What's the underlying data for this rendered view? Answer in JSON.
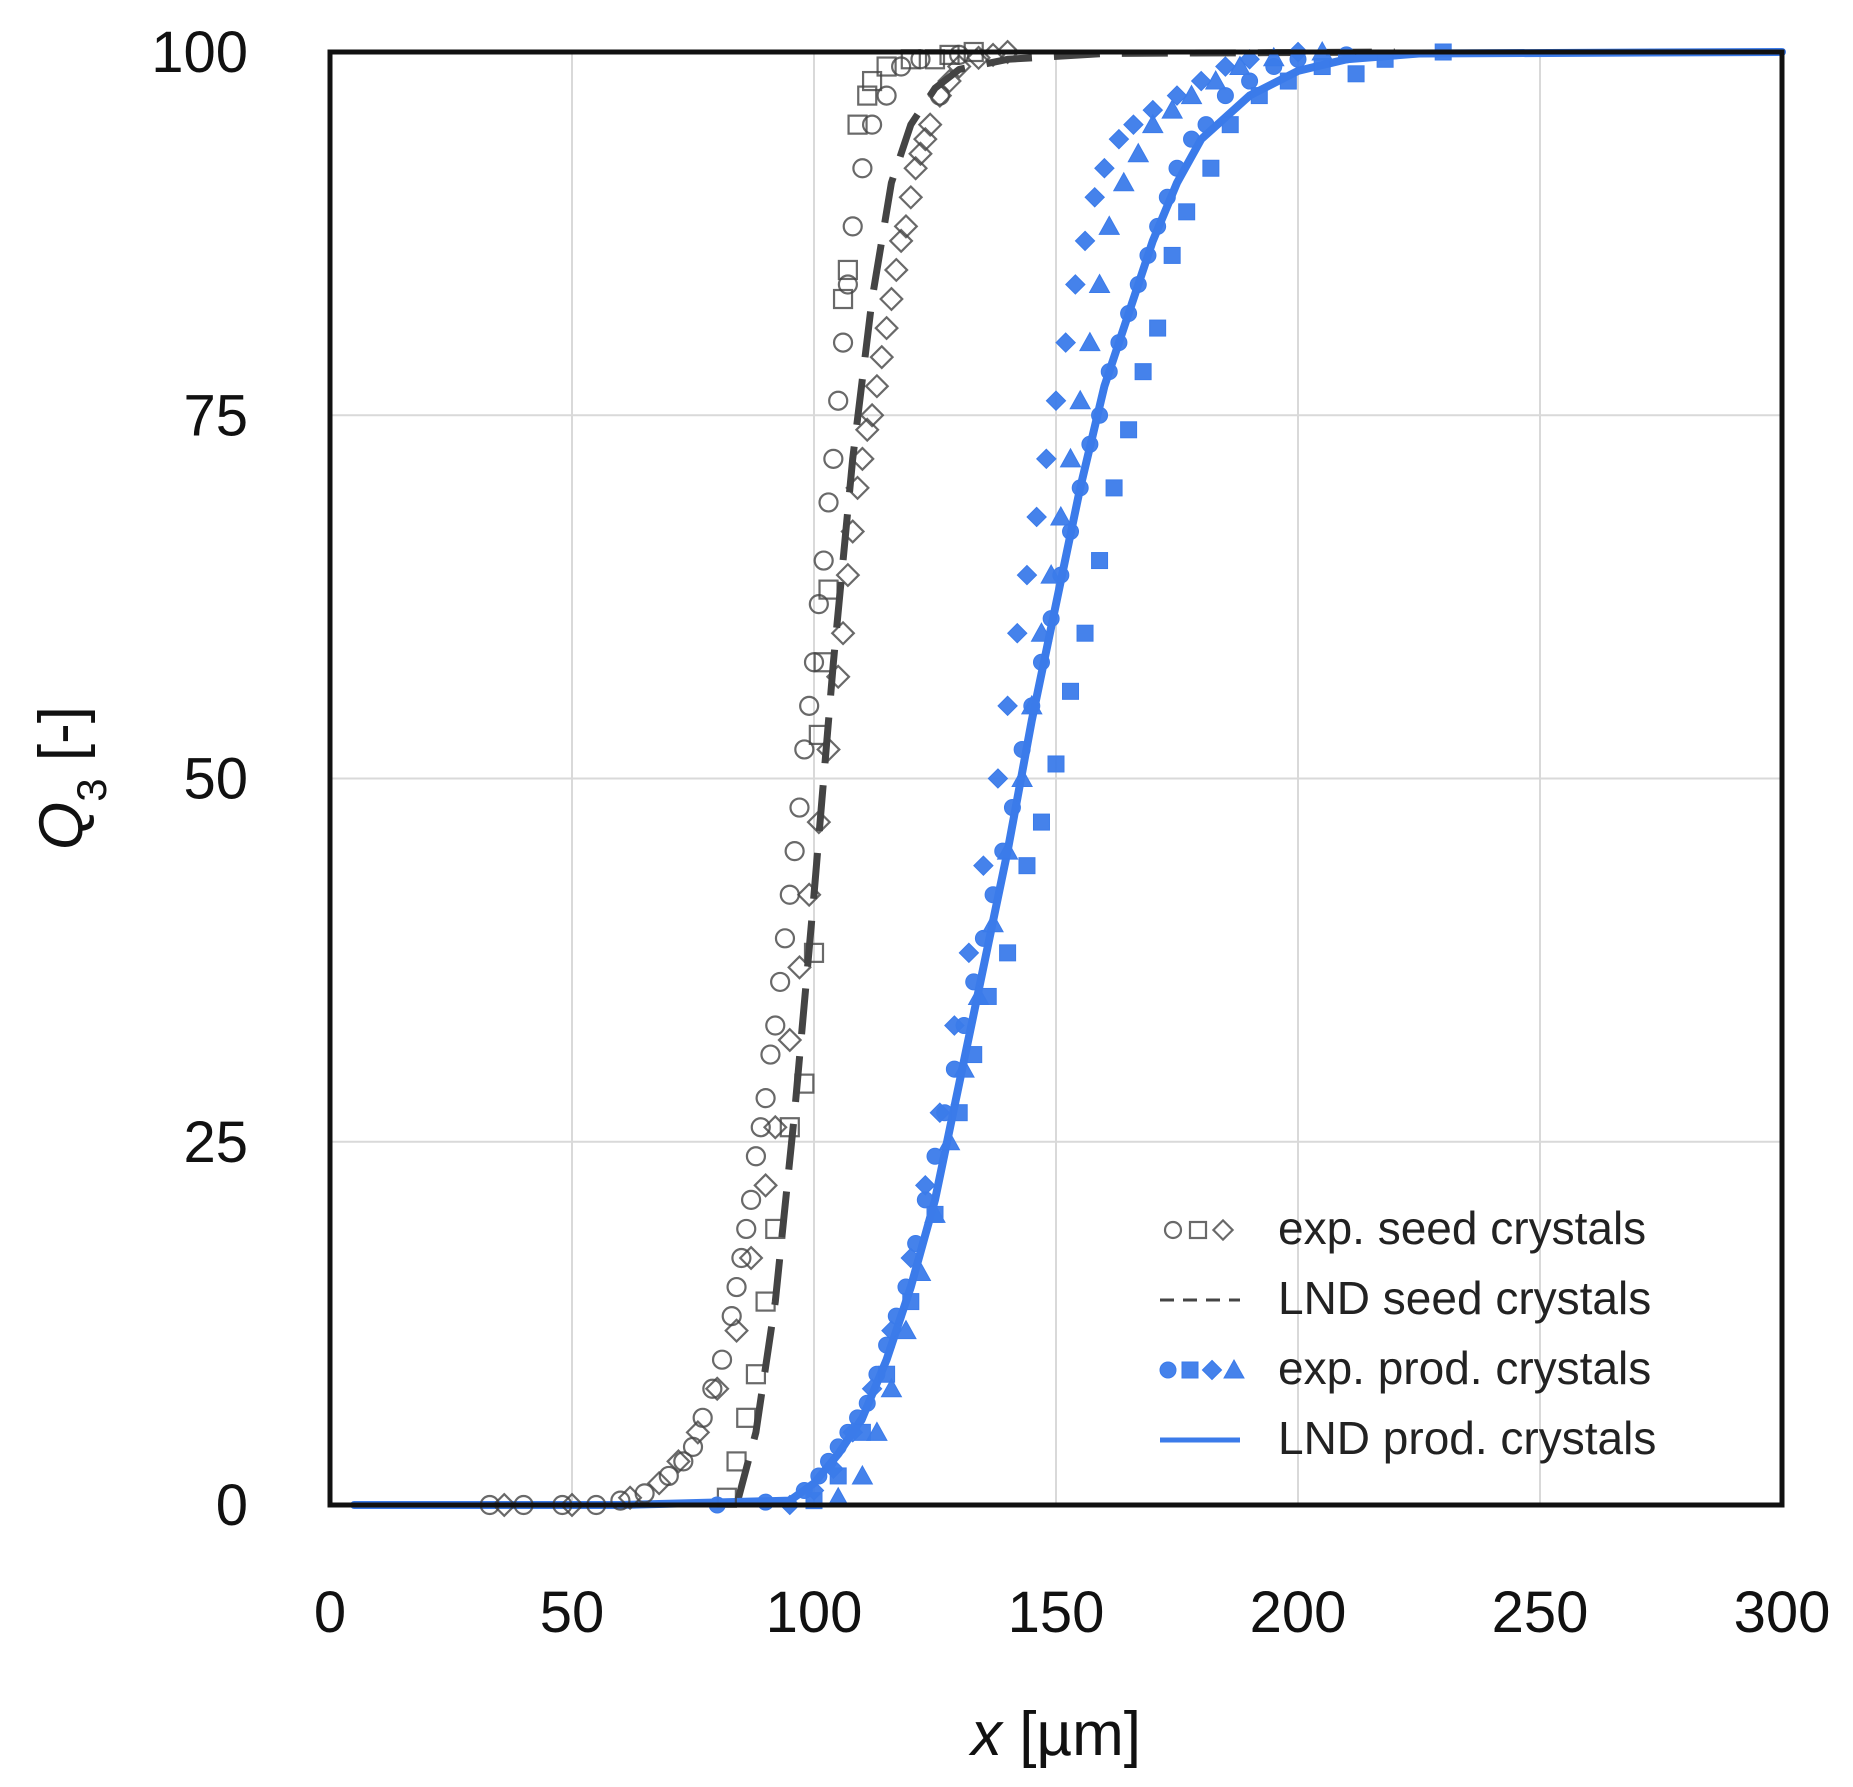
{
  "chart_data": {
    "type": "scatter",
    "title": "",
    "xlabel": {
      "var": "x",
      "unit": " [µm]"
    },
    "ylabel": {
      "var": "Q",
      "sub": "3",
      "unit": " [-]"
    },
    "xlim": [
      0,
      300
    ],
    "ylim": [
      0,
      100
    ],
    "xticks": [
      0,
      50,
      100,
      150,
      200,
      250,
      300
    ],
    "yticks": [
      0,
      25,
      50,
      75,
      100
    ],
    "grid": true,
    "legend_position": "bottom-right",
    "colors": {
      "seed": "#444444",
      "prod": "#3b7bea",
      "grid": "#d9d9d9"
    },
    "legend": [
      {
        "label": "exp. seed crystals",
        "kind": "markers",
        "markers": [
          "circle",
          "square",
          "diamond"
        ],
        "filled": false,
        "color": "#444444"
      },
      {
        "label": "LND seed crystals",
        "kind": "dashed-line",
        "color": "#444444"
      },
      {
        "label": "exp. prod. crystals",
        "kind": "markers",
        "markers": [
          "circle",
          "square",
          "diamond",
          "triangle"
        ],
        "filled": true,
        "color": "#3b7bea"
      },
      {
        "label": "LND prod. crystals",
        "kind": "solid-line",
        "color": "#3b7bea"
      }
    ],
    "series": [
      {
        "name": "LND seed crystals",
        "kind": "line",
        "style": "dashed",
        "color": "#444444",
        "points": [
          [
            84,
            0
          ],
          [
            88,
            5
          ],
          [
            92,
            14
          ],
          [
            96,
            27
          ],
          [
            100,
            42
          ],
          [
            104,
            58
          ],
          [
            108,
            72
          ],
          [
            112,
            83
          ],
          [
            116,
            91
          ],
          [
            120,
            95
          ],
          [
            125,
            97.5
          ],
          [
            130,
            98.8
          ],
          [
            140,
            99.5
          ],
          [
            160,
            99.9
          ],
          [
            220,
            100
          ]
        ]
      },
      {
        "name": "LND prod. crystals",
        "kind": "line",
        "style": "solid",
        "color": "#3b7bea",
        "points": [
          [
            5,
            0
          ],
          [
            60,
            0
          ],
          [
            95,
            0.3
          ],
          [
            100,
            1.5
          ],
          [
            105,
            3.5
          ],
          [
            110,
            6
          ],
          [
            115,
            10
          ],
          [
            120,
            15
          ],
          [
            125,
            21
          ],
          [
            130,
            29
          ],
          [
            135,
            37
          ],
          [
            140,
            45
          ],
          [
            145,
            54
          ],
          [
            150,
            62
          ],
          [
            155,
            70
          ],
          [
            160,
            77
          ],
          [
            165,
            82
          ],
          [
            170,
            87
          ],
          [
            175,
            91
          ],
          [
            180,
            94
          ],
          [
            190,
            97
          ],
          [
            200,
            98.7
          ],
          [
            210,
            99.5
          ],
          [
            225,
            99.9
          ],
          [
            300,
            100
          ]
        ]
      },
      {
        "name": "exp. seed crystals",
        "kind": "markers",
        "marker": "circle",
        "filled": false,
        "color": "#444444",
        "points": [
          [
            33,
            0
          ],
          [
            40,
            0
          ],
          [
            48,
            0
          ],
          [
            55,
            0
          ],
          [
            60,
            0.3
          ],
          [
            65,
            0.8
          ],
          [
            70,
            2
          ],
          [
            73,
            3
          ],
          [
            75,
            4
          ],
          [
            77,
            6
          ],
          [
            79,
            8
          ],
          [
            81,
            10
          ],
          [
            83,
            13
          ],
          [
            84,
            15
          ],
          [
            85,
            17
          ],
          [
            86,
            19
          ],
          [
            87,
            21
          ],
          [
            88,
            24
          ],
          [
            89,
            26
          ],
          [
            90,
            28
          ],
          [
            91,
            31
          ],
          [
            92,
            33
          ],
          [
            93,
            36
          ],
          [
            94,
            39
          ],
          [
            95,
            42
          ],
          [
            96,
            45
          ],
          [
            97,
            48
          ],
          [
            98,
            52
          ],
          [
            99,
            55
          ],
          [
            100,
            58
          ],
          [
            101,
            62
          ],
          [
            102,
            65
          ],
          [
            103,
            69
          ],
          [
            104,
            72
          ],
          [
            105,
            76
          ],
          [
            106,
            80
          ],
          [
            107,
            84
          ],
          [
            108,
            88
          ],
          [
            110,
            92
          ],
          [
            112,
            95
          ],
          [
            115,
            97
          ],
          [
            118,
            99
          ],
          [
            122,
            99.5
          ],
          [
            126,
            97
          ],
          [
            130,
            99.8
          ]
        ]
      },
      {
        "name": "exp. seed crystals",
        "kind": "markers",
        "marker": "square",
        "filled": false,
        "color": "#444444",
        "points": [
          [
            82,
            0.5
          ],
          [
            84,
            3
          ],
          [
            86,
            6
          ],
          [
            88,
            9
          ],
          [
            90,
            14
          ],
          [
            92,
            19
          ],
          [
            95,
            26
          ],
          [
            98,
            29
          ],
          [
            100,
            38
          ],
          [
            101,
            53
          ],
          [
            102,
            58
          ],
          [
            103,
            63
          ],
          [
            106,
            83
          ],
          [
            107,
            85
          ],
          [
            109,
            95
          ],
          [
            111,
            97
          ],
          [
            112,
            98
          ],
          [
            115,
            99
          ],
          [
            120,
            99.5
          ],
          [
            125,
            99.5
          ],
          [
            128,
            99.8
          ],
          [
            133,
            100
          ]
        ]
      },
      {
        "name": "exp. seed crystals",
        "kind": "markers",
        "marker": "diamond",
        "filled": false,
        "color": "#444444",
        "points": [
          [
            36,
            0
          ],
          [
            50,
            0
          ],
          [
            62,
            0.5
          ],
          [
            68,
            1.5
          ],
          [
            72,
            3
          ],
          [
            76,
            5
          ],
          [
            80,
            8
          ],
          [
            84,
            12
          ],
          [
            87,
            17
          ],
          [
            90,
            22
          ],
          [
            92,
            26
          ],
          [
            95,
            32
          ],
          [
            97,
            37
          ],
          [
            99,
            42
          ],
          [
            101,
            47
          ],
          [
            103,
            52
          ],
          [
            105,
            57
          ],
          [
            106,
            60
          ],
          [
            107,
            64
          ],
          [
            108,
            67
          ],
          [
            109,
            70
          ],
          [
            110,
            72
          ],
          [
            111,
            74
          ],
          [
            112,
            75
          ],
          [
            113,
            77
          ],
          [
            114,
            79
          ],
          [
            115,
            81
          ],
          [
            116,
            83
          ],
          [
            117,
            85
          ],
          [
            118,
            87
          ],
          [
            119,
            88
          ],
          [
            120,
            90
          ],
          [
            121,
            92
          ],
          [
            122,
            93
          ],
          [
            123,
            94
          ],
          [
            124,
            95
          ],
          [
            126,
            97
          ],
          [
            128,
            98
          ],
          [
            130,
            99
          ],
          [
            134,
            99.6
          ],
          [
            137,
            99.8
          ],
          [
            140,
            100
          ]
        ]
      },
      {
        "name": "exp. prod. crystals",
        "kind": "markers",
        "marker": "circle",
        "filled": true,
        "color": "#3b7bea",
        "points": [
          [
            80,
            0
          ],
          [
            90,
            0.2
          ],
          [
            98,
            1
          ],
          [
            101,
            2
          ],
          [
            103,
            3
          ],
          [
            105,
            4
          ],
          [
            107,
            5
          ],
          [
            109,
            6
          ],
          [
            111,
            7
          ],
          [
            113,
            9
          ],
          [
            115,
            11
          ],
          [
            117,
            13
          ],
          [
            119,
            15
          ],
          [
            121,
            18
          ],
          [
            123,
            21
          ],
          [
            125,
            24
          ],
          [
            127,
            27
          ],
          [
            129,
            30
          ],
          [
            131,
            33
          ],
          [
            133,
            36
          ],
          [
            135,
            39
          ],
          [
            137,
            42
          ],
          [
            139,
            45
          ],
          [
            141,
            48
          ],
          [
            143,
            52
          ],
          [
            145,
            55
          ],
          [
            147,
            58
          ],
          [
            149,
            61
          ],
          [
            151,
            64
          ],
          [
            153,
            67
          ],
          [
            155,
            70
          ],
          [
            157,
            73
          ],
          [
            159,
            75
          ],
          [
            161,
            78
          ],
          [
            163,
            80
          ],
          [
            165,
            82
          ],
          [
            167,
            84
          ],
          [
            169,
            86
          ],
          [
            171,
            88
          ],
          [
            173,
            90
          ],
          [
            175,
            92
          ],
          [
            178,
            94
          ],
          [
            181,
            95
          ],
          [
            185,
            97
          ],
          [
            190,
            98
          ],
          [
            195,
            99
          ],
          [
            200,
            99.5
          ],
          [
            210,
            99.8
          ]
        ]
      },
      {
        "name": "exp. prod. crystals",
        "kind": "markers",
        "marker": "square",
        "filled": true,
        "color": "#3b7bea",
        "points": [
          [
            100,
            0.3
          ],
          [
            105,
            2
          ],
          [
            110,
            5
          ],
          [
            115,
            9
          ],
          [
            120,
            14
          ],
          [
            125,
            20
          ],
          [
            130,
            27
          ],
          [
            133,
            31
          ],
          [
            136,
            35
          ],
          [
            140,
            38
          ],
          [
            144,
            44
          ],
          [
            147,
            47
          ],
          [
            150,
            51
          ],
          [
            153,
            56
          ],
          [
            156,
            60
          ],
          [
            159,
            65
          ],
          [
            162,
            70
          ],
          [
            165,
            74
          ],
          [
            168,
            78
          ],
          [
            171,
            81
          ],
          [
            174,
            86
          ],
          [
            177,
            89
          ],
          [
            182,
            92
          ],
          [
            186,
            95
          ],
          [
            192,
            97
          ],
          [
            198,
            98
          ],
          [
            205,
            99
          ],
          [
            212,
            98.5
          ],
          [
            218,
            99.5
          ],
          [
            230,
            100
          ]
        ]
      },
      {
        "name": "exp. prod. crystals",
        "kind": "markers",
        "marker": "diamond",
        "filled": true,
        "color": "#3b7bea",
        "points": [
          [
            95,
            0
          ],
          [
            100,
            1
          ],
          [
            104,
            2.5
          ],
          [
            108,
            5
          ],
          [
            112,
            8
          ],
          [
            116,
            12
          ],
          [
            120,
            17
          ],
          [
            123,
            22
          ],
          [
            126,
            27
          ],
          [
            129,
            33
          ],
          [
            132,
            38
          ],
          [
            135,
            44
          ],
          [
            138,
            50
          ],
          [
            140,
            55
          ],
          [
            142,
            60
          ],
          [
            144,
            64
          ],
          [
            146,
            68
          ],
          [
            148,
            72
          ],
          [
            150,
            76
          ],
          [
            152,
            80
          ],
          [
            154,
            84
          ],
          [
            156,
            87
          ],
          [
            158,
            90
          ],
          [
            160,
            92
          ],
          [
            163,
            94
          ],
          [
            166,
            95
          ],
          [
            170,
            96
          ],
          [
            175,
            97
          ],
          [
            180,
            98
          ],
          [
            185,
            99
          ],
          [
            190,
            99.5
          ],
          [
            200,
            100
          ]
        ]
      },
      {
        "name": "exp. prod. crystals",
        "kind": "markers",
        "marker": "triangle",
        "filled": true,
        "color": "#3b7bea",
        "points": [
          [
            105,
            0.5
          ],
          [
            110,
            2
          ],
          [
            113,
            5
          ],
          [
            116,
            8
          ],
          [
            119,
            12
          ],
          [
            122,
            16
          ],
          [
            125,
            20
          ],
          [
            128,
            25
          ],
          [
            131,
            30
          ],
          [
            134,
            35
          ],
          [
            137,
            40
          ],
          [
            140,
            45
          ],
          [
            143,
            50
          ],
          [
            145,
            55
          ],
          [
            147,
            60
          ],
          [
            149,
            64
          ],
          [
            151,
            68
          ],
          [
            153,
            72
          ],
          [
            155,
            76
          ],
          [
            157,
            80
          ],
          [
            159,
            84
          ],
          [
            161,
            88
          ],
          [
            164,
            91
          ],
          [
            167,
            93
          ],
          [
            170,
            95
          ],
          [
            174,
            96
          ],
          [
            178,
            97
          ],
          [
            183,
            98
          ],
          [
            188,
            99
          ],
          [
            195,
            99.6
          ],
          [
            205,
            100
          ]
        ]
      }
    ]
  }
}
